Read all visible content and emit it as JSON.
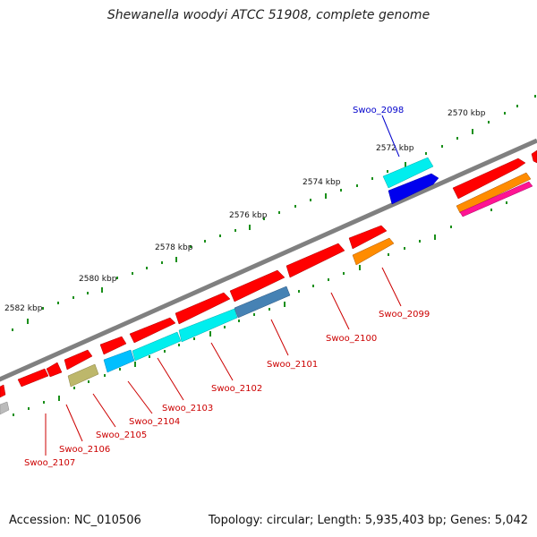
{
  "title": "Shewanella woodyi ATCC 51908, complete genome",
  "footer": {
    "accession": "Accession: NC_010506",
    "stats": "Topology: circular; Length: 5,935,403 bp; Genes: 5,042"
  },
  "scale_labels": [
    "2570 kbp",
    "2572 kbp",
    "2574 kbp",
    "2576 kbp",
    "2578 kbp",
    "2580 kbp",
    "2582 kbp"
  ],
  "gene_labels": [
    {
      "text": "Swoo_2098",
      "color": "#0000cc"
    },
    {
      "text": "Swoo_2099",
      "color": "#cc0000"
    },
    {
      "text": "Swoo_2100",
      "color": "#cc0000"
    },
    {
      "text": "Swoo_2101",
      "color": "#cc0000"
    },
    {
      "text": "Swoo_2102",
      "color": "#cc0000"
    },
    {
      "text": "Swoo_2103",
      "color": "#cc0000"
    },
    {
      "text": "Swoo_2104",
      "color": "#cc0000"
    },
    {
      "text": "Swoo_2105",
      "color": "#cc0000"
    },
    {
      "text": "Swoo_2106",
      "color": "#cc0000"
    },
    {
      "text": "Swoo_2107",
      "color": "#cc0000"
    }
  ],
  "colors": {
    "cds": "#ff0000",
    "cyan": "#00e5ee",
    "blue": "#0000ee",
    "orange": "#ff8c00",
    "magenta": "#ff1493",
    "olive": "#bdb76b",
    "steel": "#4682b4",
    "grey": "#bbbbbb",
    "backbone": "#7f7f7f",
    "tick": "#008000"
  }
}
